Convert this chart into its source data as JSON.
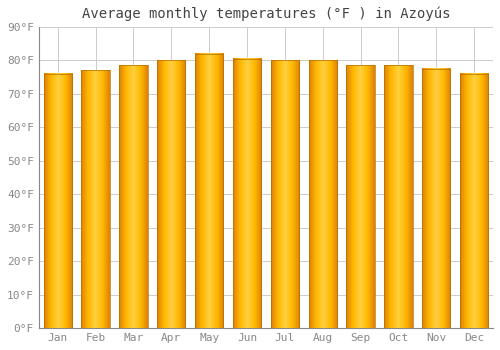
{
  "title": "Average monthly temperatures (°F ) in Azoyús",
  "months": [
    "Jan",
    "Feb",
    "Mar",
    "Apr",
    "May",
    "Jun",
    "Jul",
    "Aug",
    "Sep",
    "Oct",
    "Nov",
    "Dec"
  ],
  "values": [
    76,
    77,
    78.5,
    80,
    82,
    80.5,
    80,
    80,
    78.5,
    78.5,
    77.5,
    76
  ],
  "bar_color_left": "#E8870A",
  "bar_color_center": "#FFCA28",
  "bar_color_right": "#E8870A",
  "background_color": "#FFFFFF",
  "plot_bg_color": "#FFFFFF",
  "grid_color": "#CCCCCC",
  "text_color": "#888888",
  "title_color": "#444444",
  "spine_color": "#888888",
  "ylim": [
    0,
    90
  ],
  "yticks": [
    0,
    10,
    20,
    30,
    40,
    50,
    60,
    70,
    80,
    90
  ],
  "ytick_labels": [
    "0°F",
    "10°F",
    "20°F",
    "30°F",
    "40°F",
    "50°F",
    "60°F",
    "70°F",
    "80°F",
    "90°F"
  ],
  "title_fontsize": 10,
  "tick_fontsize": 8,
  "font_family": "monospace"
}
